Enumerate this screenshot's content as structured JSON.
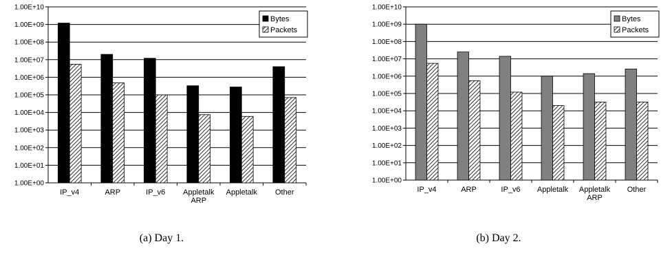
{
  "chart_data": [
    {
      "type": "bar",
      "scale": "log",
      "ylim": [
        1,
        10000000000
      ],
      "yticks": [
        "1.00E+00",
        "1.00E+01",
        "1.00E+02",
        "1.00E+03",
        "1.00E+04",
        "1.00E+05",
        "1.00E+06",
        "1.00E+07",
        "1.00E+08",
        "1.00E+09",
        "1.00E+10"
      ],
      "categories": [
        [
          "IP_v4"
        ],
        [
          "ARP"
        ],
        [
          "IP_v6"
        ],
        [
          "Appletalk",
          "ARP"
        ],
        [
          "Appletalk"
        ],
        [
          "Other"
        ]
      ],
      "series": [
        {
          "name": "Bytes",
          "color": "#000000",
          "pattern": "solid",
          "values": [
            1200000000,
            20000000,
            12000000,
            330000,
            280000,
            4000000
          ]
        },
        {
          "name": "Packets",
          "color": "#000000",
          "pattern": "hatch",
          "values": [
            5500000,
            480000,
            100000,
            7500,
            6000,
            70000
          ]
        }
      ],
      "legend_position": "top-right",
      "grid": true,
      "caption": "(a) Day 1."
    },
    {
      "type": "bar",
      "scale": "log",
      "ylim": [
        1,
        10000000000
      ],
      "yticks": [
        "1.00E+00",
        "1.00E+01",
        "1.00E+02",
        "1.00E+03",
        "1.00E+04",
        "1.00E+05",
        "1.00E+06",
        "1.00E+07",
        "1.00E+08",
        "1.00E+09",
        "1.00E+10"
      ],
      "categories": [
        [
          "IP_v4"
        ],
        [
          "ARP"
        ],
        [
          "IP_v6"
        ],
        [
          "Appletalk"
        ],
        [
          "Appletalk",
          "ARP"
        ],
        [
          "Other"
        ]
      ],
      "series": [
        {
          "name": "Bytes",
          "color": "#808080",
          "pattern": "solid",
          "values": [
            1000000000,
            25000000,
            14000000,
            1000000,
            1400000,
            2600000
          ]
        },
        {
          "name": "Packets",
          "color": "#000000",
          "pattern": "hatch",
          "values": [
            5500000,
            550000,
            120000,
            20000,
            32000,
            32000
          ]
        }
      ],
      "legend_position": "top-right",
      "grid": true,
      "caption": "(b) Day 2."
    }
  ]
}
